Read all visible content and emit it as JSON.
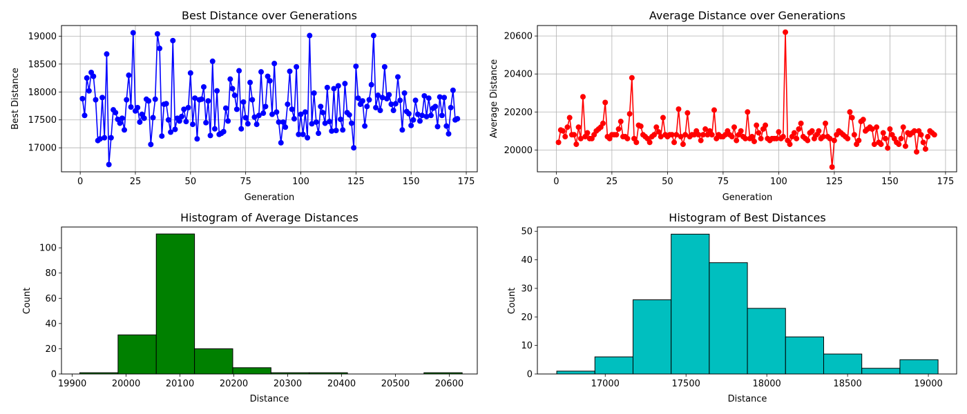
{
  "chart_data": [
    {
      "type": "line",
      "title": "Best Distance over Generations",
      "xlabel": "Generation",
      "ylabel": "Best Distance",
      "color": "#0000ff",
      "marker": "circle",
      "grid": true,
      "xlim": [
        -8.5,
        180
      ],
      "ylim": [
        16570,
        19190
      ],
      "xticks": [
        0,
        25,
        50,
        75,
        100,
        125,
        150,
        175
      ],
      "yticks": [
        17000,
        17500,
        18000,
        18500,
        19000
      ],
      "series": [
        {
          "x_start": 1,
          "values": [
            17880,
            17580,
            18250,
            18020,
            18350,
            18280,
            17860,
            17130,
            17160,
            17900,
            17180,
            18680,
            16700,
            17180,
            17680,
            17630,
            17510,
            17440,
            17530,
            17320,
            17860,
            18300,
            17730,
            19060,
            17660,
            17720,
            17460,
            17600,
            17530,
            17870,
            17840,
            17060,
            17540,
            17870,
            19040,
            18780,
            17210,
            17780,
            17790,
            17500,
            17280,
            18920,
            17330,
            17530,
            17480,
            17560,
            17690,
            17470,
            17720,
            18340,
            17420,
            17890,
            17160,
            17860,
            17870,
            18090,
            17450,
            17840,
            17220,
            18550,
            17340,
            18020,
            17240,
            17260,
            17290,
            17710,
            17480,
            18230,
            18060,
            17940,
            17690,
            18380,
            17340,
            17820,
            17540,
            17430,
            18170,
            17860,
            17550,
            17420,
            17580,
            18360,
            17620,
            17740,
            18280,
            18200,
            17600,
            18510,
            17640,
            17460,
            17090,
            17460,
            17370,
            17780,
            18370,
            17690,
            17520,
            18450,
            17240,
            17600,
            17240,
            17640,
            17180,
            19010,
            17430,
            17980,
            17460,
            17260,
            17740,
            17630,
            17440,
            18080,
            17470,
            17300,
            18060,
            17310,
            18110,
            17510,
            17320,
            18150,
            17630,
            17590,
            17440,
            17000,
            18460,
            17890,
            17780,
            17840,
            17390,
            17740,
            17860,
            18130,
            19010,
            17720,
            17940,
            17670,
            17900,
            18450,
            17880,
            17950,
            17780,
            17670,
            17790,
            18270,
            17850,
            17320,
            17980,
            17650,
            17610,
            17400,
            17500,
            17850,
            17600,
            17480,
            17580,
            17930,
            17560,
            17890,
            17580,
            17710,
            17740,
            17380,
            17910,
            17580,
            17900,
            17390,
            17250,
            17720,
            18030,
            17500,
            17520
          ]
        }
      ]
    },
    {
      "type": "line",
      "title": "Average Distance over Generations",
      "xlabel": "Generation",
      "ylabel": "Average Distance",
      "color": "#ff0000",
      "marker": "circle",
      "grid": true,
      "xlim": [
        -8.5,
        180
      ],
      "ylim": [
        19885,
        20655
      ],
      "xticks": [
        0,
        25,
        50,
        75,
        100,
        125,
        150,
        175
      ],
      "yticks": [
        20000,
        20200,
        20400,
        20600
      ],
      "series": [
        {
          "x_start": 1,
          "values": [
            20040,
            20105,
            20100,
            20070,
            20120,
            20170,
            20080,
            20080,
            20030,
            20120,
            20060,
            20280,
            20070,
            20090,
            20060,
            20060,
            20080,
            20100,
            20110,
            20120,
            20140,
            20250,
            20070,
            20060,
            20080,
            20080,
            20080,
            20110,
            20150,
            20070,
            20070,
            20060,
            20190,
            20380,
            20060,
            20040,
            20130,
            20125,
            20080,
            20070,
            20060,
            20040,
            20070,
            20080,
            20120,
            20095,
            20070,
            20170,
            20080,
            20070,
            20080,
            20080,
            20040,
            20080,
            20215,
            20070,
            20030,
            20080,
            20195,
            20070,
            20080,
            20080,
            20100,
            20080,
            20050,
            20080,
            20110,
            20080,
            20100,
            20080,
            20210,
            20060,
            20080,
            20070,
            20070,
            20080,
            20100,
            20080,
            20070,
            20120,
            20050,
            20080,
            20100,
            20070,
            20060,
            20200,
            20060,
            20070,
            20045,
            20130,
            20090,
            20060,
            20110,
            20130,
            20060,
            20050,
            20060,
            20060,
            20060,
            20095,
            20060,
            20070,
            20620,
            20050,
            20030,
            20070,
            20090,
            20060,
            20110,
            20140,
            20070,
            20060,
            20050,
            20090,
            20100,
            20060,
            20080,
            20100,
            20060,
            20070,
            20140,
            20070,
            20060,
            19910,
            20050,
            20080,
            20100,
            20090,
            20080,
            20070,
            20060,
            20200,
            20170,
            20080,
            20030,
            20050,
            20150,
            20160,
            20100,
            20110,
            20120,
            20110,
            20030,
            20120,
            20040,
            20030,
            20090,
            20060,
            20010,
            20110,
            20080,
            20060,
            20040,
            20030,
            20060,
            20120,
            20020,
            20090,
            20080,
            20090,
            20100,
            19990,
            20100,
            20080,
            20040,
            20005,
            20070,
            20100,
            20090,
            20080
          ]
        }
      ]
    },
    {
      "type": "histogram",
      "title": "Histogram of Average Distances",
      "xlabel": "Distance",
      "ylabel": "Count",
      "color": "#008000",
      "edgecolor": "#000000",
      "xlim": [
        19880,
        20652
      ],
      "ylim": [
        0,
        116.5
      ],
      "xticks": [
        19900,
        20000,
        20100,
        20200,
        20300,
        20400,
        20500,
        20600
      ],
      "yticks": [
        0,
        20,
        40,
        60,
        80,
        100
      ],
      "bins": [
        19914,
        19985,
        20056,
        20127,
        20198,
        20269,
        20340,
        20411,
        20482,
        20553,
        20624
      ],
      "counts": [
        1,
        31,
        111,
        20,
        5,
        1,
        1,
        0,
        0,
        1
      ]
    },
    {
      "type": "histogram",
      "title": "Histogram of Best Distances",
      "xlabel": "Distance",
      "ylabel": "Count",
      "color": "#00bfbf",
      "edgecolor": "#000000",
      "xlim": [
        16580,
        19175
      ],
      "ylim": [
        0,
        51.5
      ],
      "xticks": [
        17000,
        17500,
        18000,
        18500,
        19000
      ],
      "yticks": [
        0,
        10,
        20,
        30,
        40,
        50
      ],
      "bins": [
        16700,
        16936,
        17172,
        17408,
        17644,
        17880,
        18116,
        18352,
        18588,
        18824,
        19060
      ],
      "counts": [
        1,
        6,
        26,
        49,
        39,
        23,
        13,
        7,
        2,
        5
      ]
    }
  ]
}
